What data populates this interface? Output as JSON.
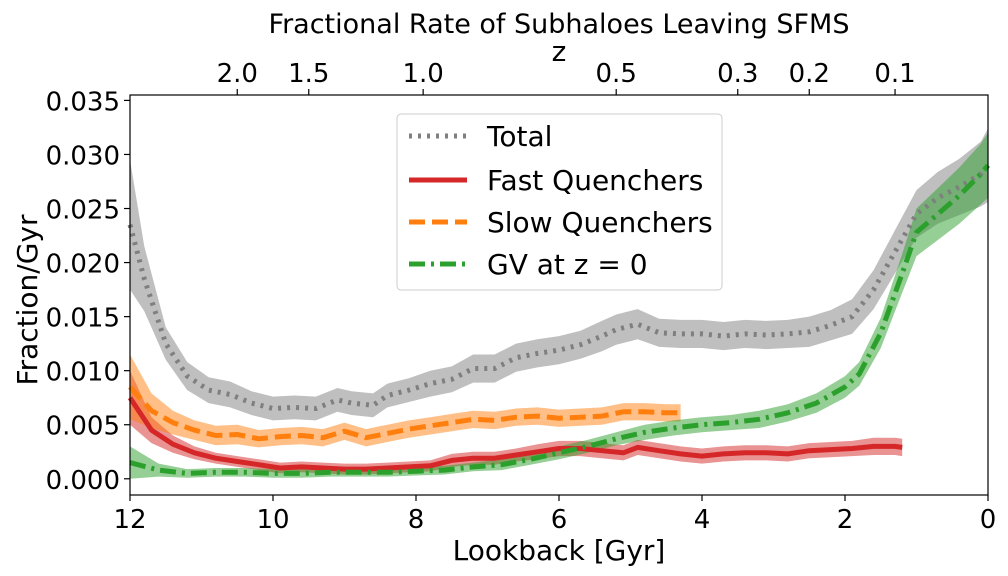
{
  "chart_data": {
    "type": "line",
    "title": "Fractional Rate of Subhaloes Leaving SFMS",
    "top_axis_label": "z",
    "xlabel": "Lookback [Gyr]",
    "ylabel": "Fraction/Gyr",
    "xlim": [
      12,
      0
    ],
    "ylim": [
      -0.0015,
      0.0355
    ],
    "x_ticks": [
      12,
      10,
      8,
      6,
      4,
      2,
      0
    ],
    "x_tick_labels": [
      "12",
      "10",
      "8",
      "6",
      "4",
      "2",
      "0"
    ],
    "y_ticks": [
      0.0,
      0.005,
      0.01,
      0.015,
      0.02,
      0.025,
      0.03,
      0.035
    ],
    "y_tick_labels": [
      "0.000",
      "0.005",
      "0.010",
      "0.015",
      "0.020",
      "0.025",
      "0.030",
      "0.035"
    ],
    "top_ticks": [
      {
        "label": "2.0",
        "lookback": 10.5
      },
      {
        "label": "1.5",
        "lookback": 9.5
      },
      {
        "label": "1.0",
        "lookback": 7.9
      },
      {
        "label": "0.5",
        "lookback": 5.2
      },
      {
        "label": "0.3",
        "lookback": 3.5
      },
      {
        "label": "0.2",
        "lookback": 2.5
      },
      {
        "label": "0.1",
        "lookback": 1.3
      }
    ],
    "legend_position": "upper-center",
    "series": [
      {
        "name": "Total",
        "color": "#7f7f7f",
        "style": "dotted",
        "x": [
          12,
          11.8,
          11.5,
          11.2,
          10.9,
          10.6,
          10.3,
          10.0,
          9.7,
          9.4,
          9.1,
          8.9,
          8.6,
          8.4,
          8.1,
          7.8,
          7.5,
          7.2,
          6.9,
          6.6,
          6.3,
          6.0,
          5.7,
          5.4,
          5.2,
          4.9,
          4.6,
          4.3,
          4.0,
          3.7,
          3.4,
          3.1,
          2.8,
          2.5,
          2.2,
          1.9,
          1.6,
          1.3,
          1.0,
          0.7,
          0.4,
          0.1,
          0.0
        ],
        "y": [
          0.0235,
          0.0185,
          0.0125,
          0.0095,
          0.0082,
          0.0078,
          0.007,
          0.0065,
          0.0066,
          0.0065,
          0.0073,
          0.007,
          0.0068,
          0.0077,
          0.0082,
          0.0088,
          0.0092,
          0.0102,
          0.0102,
          0.0112,
          0.0116,
          0.0119,
          0.0124,
          0.0132,
          0.0138,
          0.0143,
          0.0135,
          0.0134,
          0.0134,
          0.0132,
          0.0134,
          0.0133,
          0.0134,
          0.0136,
          0.0142,
          0.015,
          0.0175,
          0.021,
          0.0245,
          0.026,
          0.027,
          0.0282,
          0.029
        ],
        "err": [
          0.006,
          0.003,
          0.0015,
          0.0013,
          0.0012,
          0.0012,
          0.0011,
          0.0011,
          0.0011,
          0.0011,
          0.0011,
          0.0011,
          0.0011,
          0.0011,
          0.0011,
          0.0012,
          0.0012,
          0.0013,
          0.0013,
          0.0013,
          0.0013,
          0.0013,
          0.0013,
          0.0014,
          0.0014,
          0.0014,
          0.0013,
          0.0013,
          0.0013,
          0.0013,
          0.0013,
          0.0013,
          0.0013,
          0.0014,
          0.0014,
          0.0016,
          0.0018,
          0.002,
          0.0022,
          0.0024,
          0.0026,
          0.003,
          0.0034
        ]
      },
      {
        "name": "Fast Quenchers",
        "color": "#d62728",
        "style": "solid",
        "x": [
          12,
          11.7,
          11.4,
          11.1,
          10.8,
          10.5,
          10.2,
          9.9,
          9.6,
          9.3,
          9.0,
          8.7,
          8.4,
          8.1,
          7.8,
          7.5,
          7.2,
          6.9,
          6.6,
          6.3,
          6.0,
          5.7,
          5.4,
          5.1,
          4.9,
          4.6,
          4.3,
          4.0,
          3.7,
          3.4,
          3.1,
          2.8,
          2.5,
          2.2,
          1.9,
          1.6,
          1.3,
          1.2
        ],
        "y": [
          0.0075,
          0.0045,
          0.0032,
          0.0024,
          0.0019,
          0.0016,
          0.0013,
          0.001,
          0.0011,
          0.001,
          0.0009,
          0.0009,
          0.001,
          0.0011,
          0.0012,
          0.0017,
          0.0019,
          0.0019,
          0.0022,
          0.0025,
          0.0028,
          0.0028,
          0.0026,
          0.0024,
          0.0029,
          0.0026,
          0.0023,
          0.0021,
          0.0023,
          0.0024,
          0.0024,
          0.0023,
          0.0026,
          0.0027,
          0.0028,
          0.003,
          0.003,
          0.0029
        ],
        "err": [
          0.0025,
          0.0012,
          0.0008,
          0.0006,
          0.0005,
          0.0005,
          0.0005,
          0.0005,
          0.0005,
          0.0005,
          0.0005,
          0.0005,
          0.0005,
          0.0005,
          0.0005,
          0.0006,
          0.0006,
          0.0006,
          0.0006,
          0.0007,
          0.0007,
          0.0007,
          0.0007,
          0.0007,
          0.0007,
          0.0007,
          0.0007,
          0.0007,
          0.0007,
          0.0007,
          0.0007,
          0.0007,
          0.0007,
          0.0007,
          0.0007,
          0.0008,
          0.0008,
          0.0008
        ]
      },
      {
        "name": "Slow Quenchers",
        "color": "#ff7f0e",
        "style": "dashed",
        "x": [
          12,
          11.7,
          11.4,
          11.1,
          10.8,
          10.5,
          10.2,
          9.9,
          9.6,
          9.3,
          9.0,
          8.7,
          8.4,
          8.1,
          7.8,
          7.5,
          7.2,
          6.9,
          6.6,
          6.3,
          6.0,
          5.7,
          5.4,
          5.1,
          4.8,
          4.5,
          4.3
        ],
        "y": [
          0.0085,
          0.0063,
          0.0052,
          0.0045,
          0.004,
          0.0041,
          0.0037,
          0.0039,
          0.004,
          0.0038,
          0.0044,
          0.0038,
          0.0042,
          0.0046,
          0.0049,
          0.0052,
          0.0055,
          0.0054,
          0.0057,
          0.0058,
          0.0056,
          0.0057,
          0.0058,
          0.0062,
          0.0062,
          0.0061,
          0.0061
        ],
        "err": [
          0.003,
          0.0016,
          0.0011,
          0.0009,
          0.0009,
          0.0009,
          0.0008,
          0.0008,
          0.0008,
          0.0008,
          0.0008,
          0.0008,
          0.0008,
          0.0008,
          0.0008,
          0.0008,
          0.0008,
          0.0008,
          0.0008,
          0.0008,
          0.0008,
          0.0008,
          0.0008,
          0.0008,
          0.0008,
          0.0008,
          0.0008
        ]
      },
      {
        "name": "GV at z = 0",
        "color": "#2ca02c",
        "style": "dashdot",
        "x": [
          12,
          11.6,
          11.2,
          10.8,
          10.4,
          10.0,
          9.6,
          9.2,
          8.8,
          8.4,
          8.0,
          7.6,
          7.2,
          6.8,
          6.4,
          6.0,
          5.6,
          5.2,
          4.8,
          4.4,
          4.0,
          3.6,
          3.2,
          2.8,
          2.4,
          2.0,
          1.8,
          1.5,
          1.2,
          1.0,
          0.7,
          0.4,
          0.1,
          0.0
        ],
        "y": [
          0.0015,
          0.0008,
          0.0005,
          0.0006,
          0.0006,
          0.0005,
          0.0005,
          0.0006,
          0.0006,
          0.0006,
          0.0007,
          0.0008,
          0.0011,
          0.0013,
          0.0018,
          0.0024,
          0.003,
          0.0037,
          0.0043,
          0.0047,
          0.005,
          0.0052,
          0.0055,
          0.0061,
          0.007,
          0.0085,
          0.0097,
          0.0135,
          0.019,
          0.0228,
          0.0245,
          0.0262,
          0.0282,
          0.029
        ],
        "err": [
          0.0015,
          0.0006,
          0.0004,
          0.0004,
          0.0004,
          0.0004,
          0.0004,
          0.0004,
          0.0004,
          0.0004,
          0.0004,
          0.0004,
          0.0004,
          0.0005,
          0.0005,
          0.0006,
          0.0006,
          0.0006,
          0.0007,
          0.0007,
          0.0007,
          0.0007,
          0.0008,
          0.0008,
          0.0009,
          0.001,
          0.0011,
          0.0014,
          0.0018,
          0.0022,
          0.0024,
          0.0026,
          0.0028,
          0.003
        ]
      }
    ]
  }
}
